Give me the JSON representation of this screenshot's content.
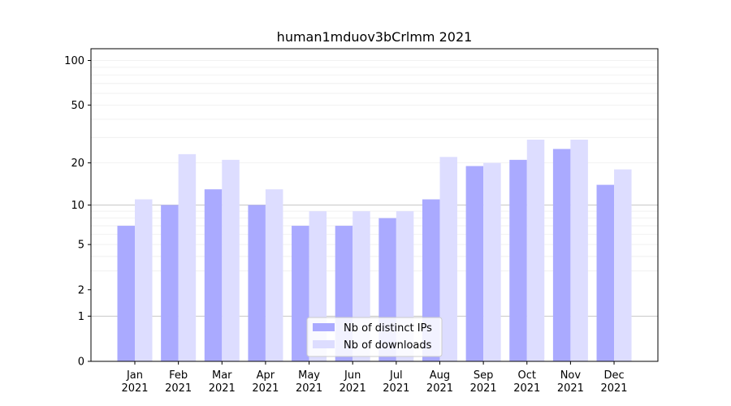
{
  "chart_data": {
    "type": "bar",
    "title": "human1mduov3bCrlmm 2021",
    "xlabel": "",
    "ylabel": "",
    "yscale": "log(1+y)",
    "ylim": [
      0,
      120
    ],
    "yticks": [
      0,
      1,
      2,
      5,
      10,
      20,
      50,
      100
    ],
    "categories": [
      [
        "Jan",
        "2021"
      ],
      [
        "Feb",
        "2021"
      ],
      [
        "Mar",
        "2021"
      ],
      [
        "Apr",
        "2021"
      ],
      [
        "May",
        "2021"
      ],
      [
        "Jun",
        "2021"
      ],
      [
        "Jul",
        "2021"
      ],
      [
        "Aug",
        "2021"
      ],
      [
        "Sep",
        "2021"
      ],
      [
        "Oct",
        "2021"
      ],
      [
        "Nov",
        "2021"
      ],
      [
        "Dec",
        "2021"
      ]
    ],
    "series": [
      {
        "name": "Nb of distinct IPs",
        "color": "#aaaaff",
        "values": [
          7,
          10,
          13,
          10,
          7,
          7,
          8,
          11,
          19,
          21,
          25,
          14
        ]
      },
      {
        "name": "Nb of downloads",
        "color": "#ddddff",
        "values": [
          11,
          23,
          21,
          13,
          9,
          9,
          9,
          22,
          20,
          29,
          29,
          18
        ]
      }
    ],
    "legend": "lower-center",
    "grid": true
  }
}
